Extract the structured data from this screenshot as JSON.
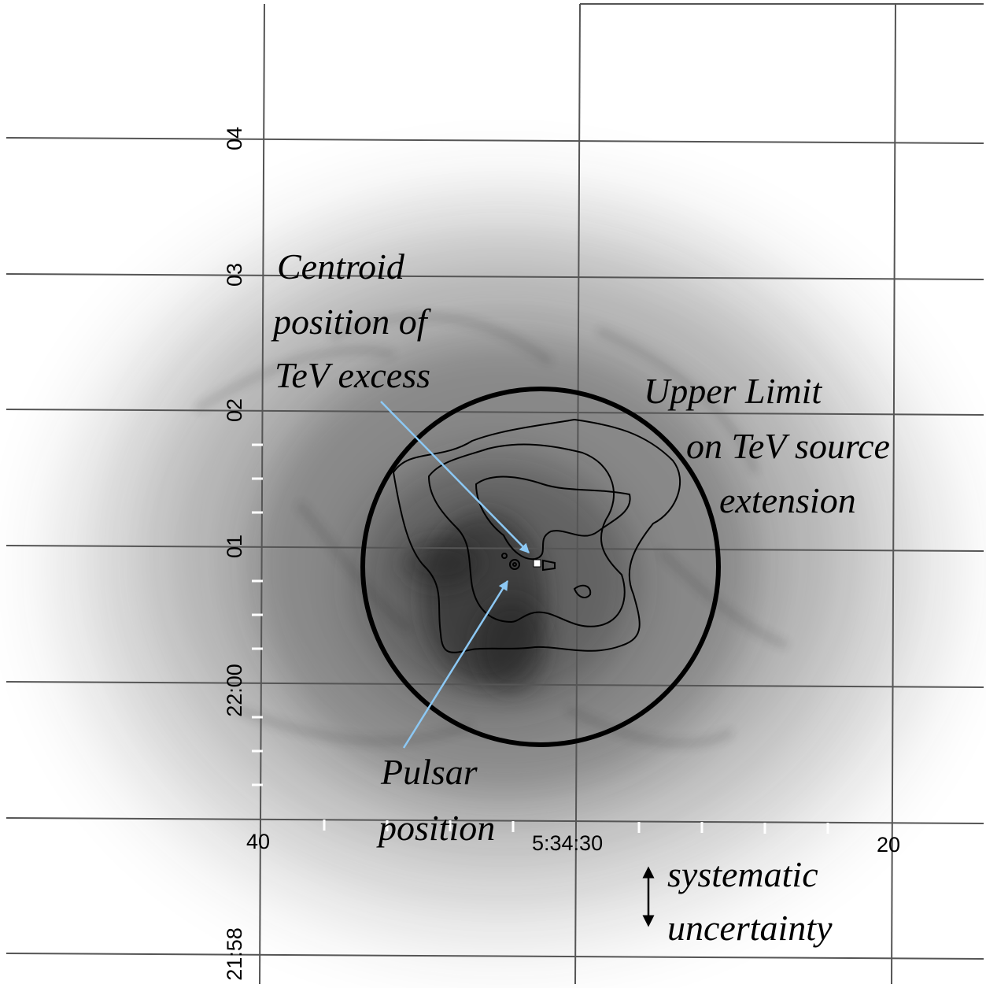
{
  "figure": {
    "dec_ticks": [
      "04",
      "03",
      "02",
      "01",
      "22:00",
      "21:58"
    ],
    "ra_ticks": [
      "40",
      "5:34:30",
      "20"
    ],
    "annotations": {
      "centroid": [
        "Centroid",
        "position of",
        "TeV excess"
      ],
      "upper_limit": [
        "Upper Limit",
        "on TeV source",
        "extension"
      ],
      "pulsar": [
        "Pulsar",
        "position"
      ],
      "systematic": [
        "systematic",
        "uncertainty"
      ]
    },
    "colors": {
      "arrow": "#8cc8f4",
      "grid": "#555555",
      "circle": "#000000",
      "nebula": "#1e1e1e"
    }
  }
}
